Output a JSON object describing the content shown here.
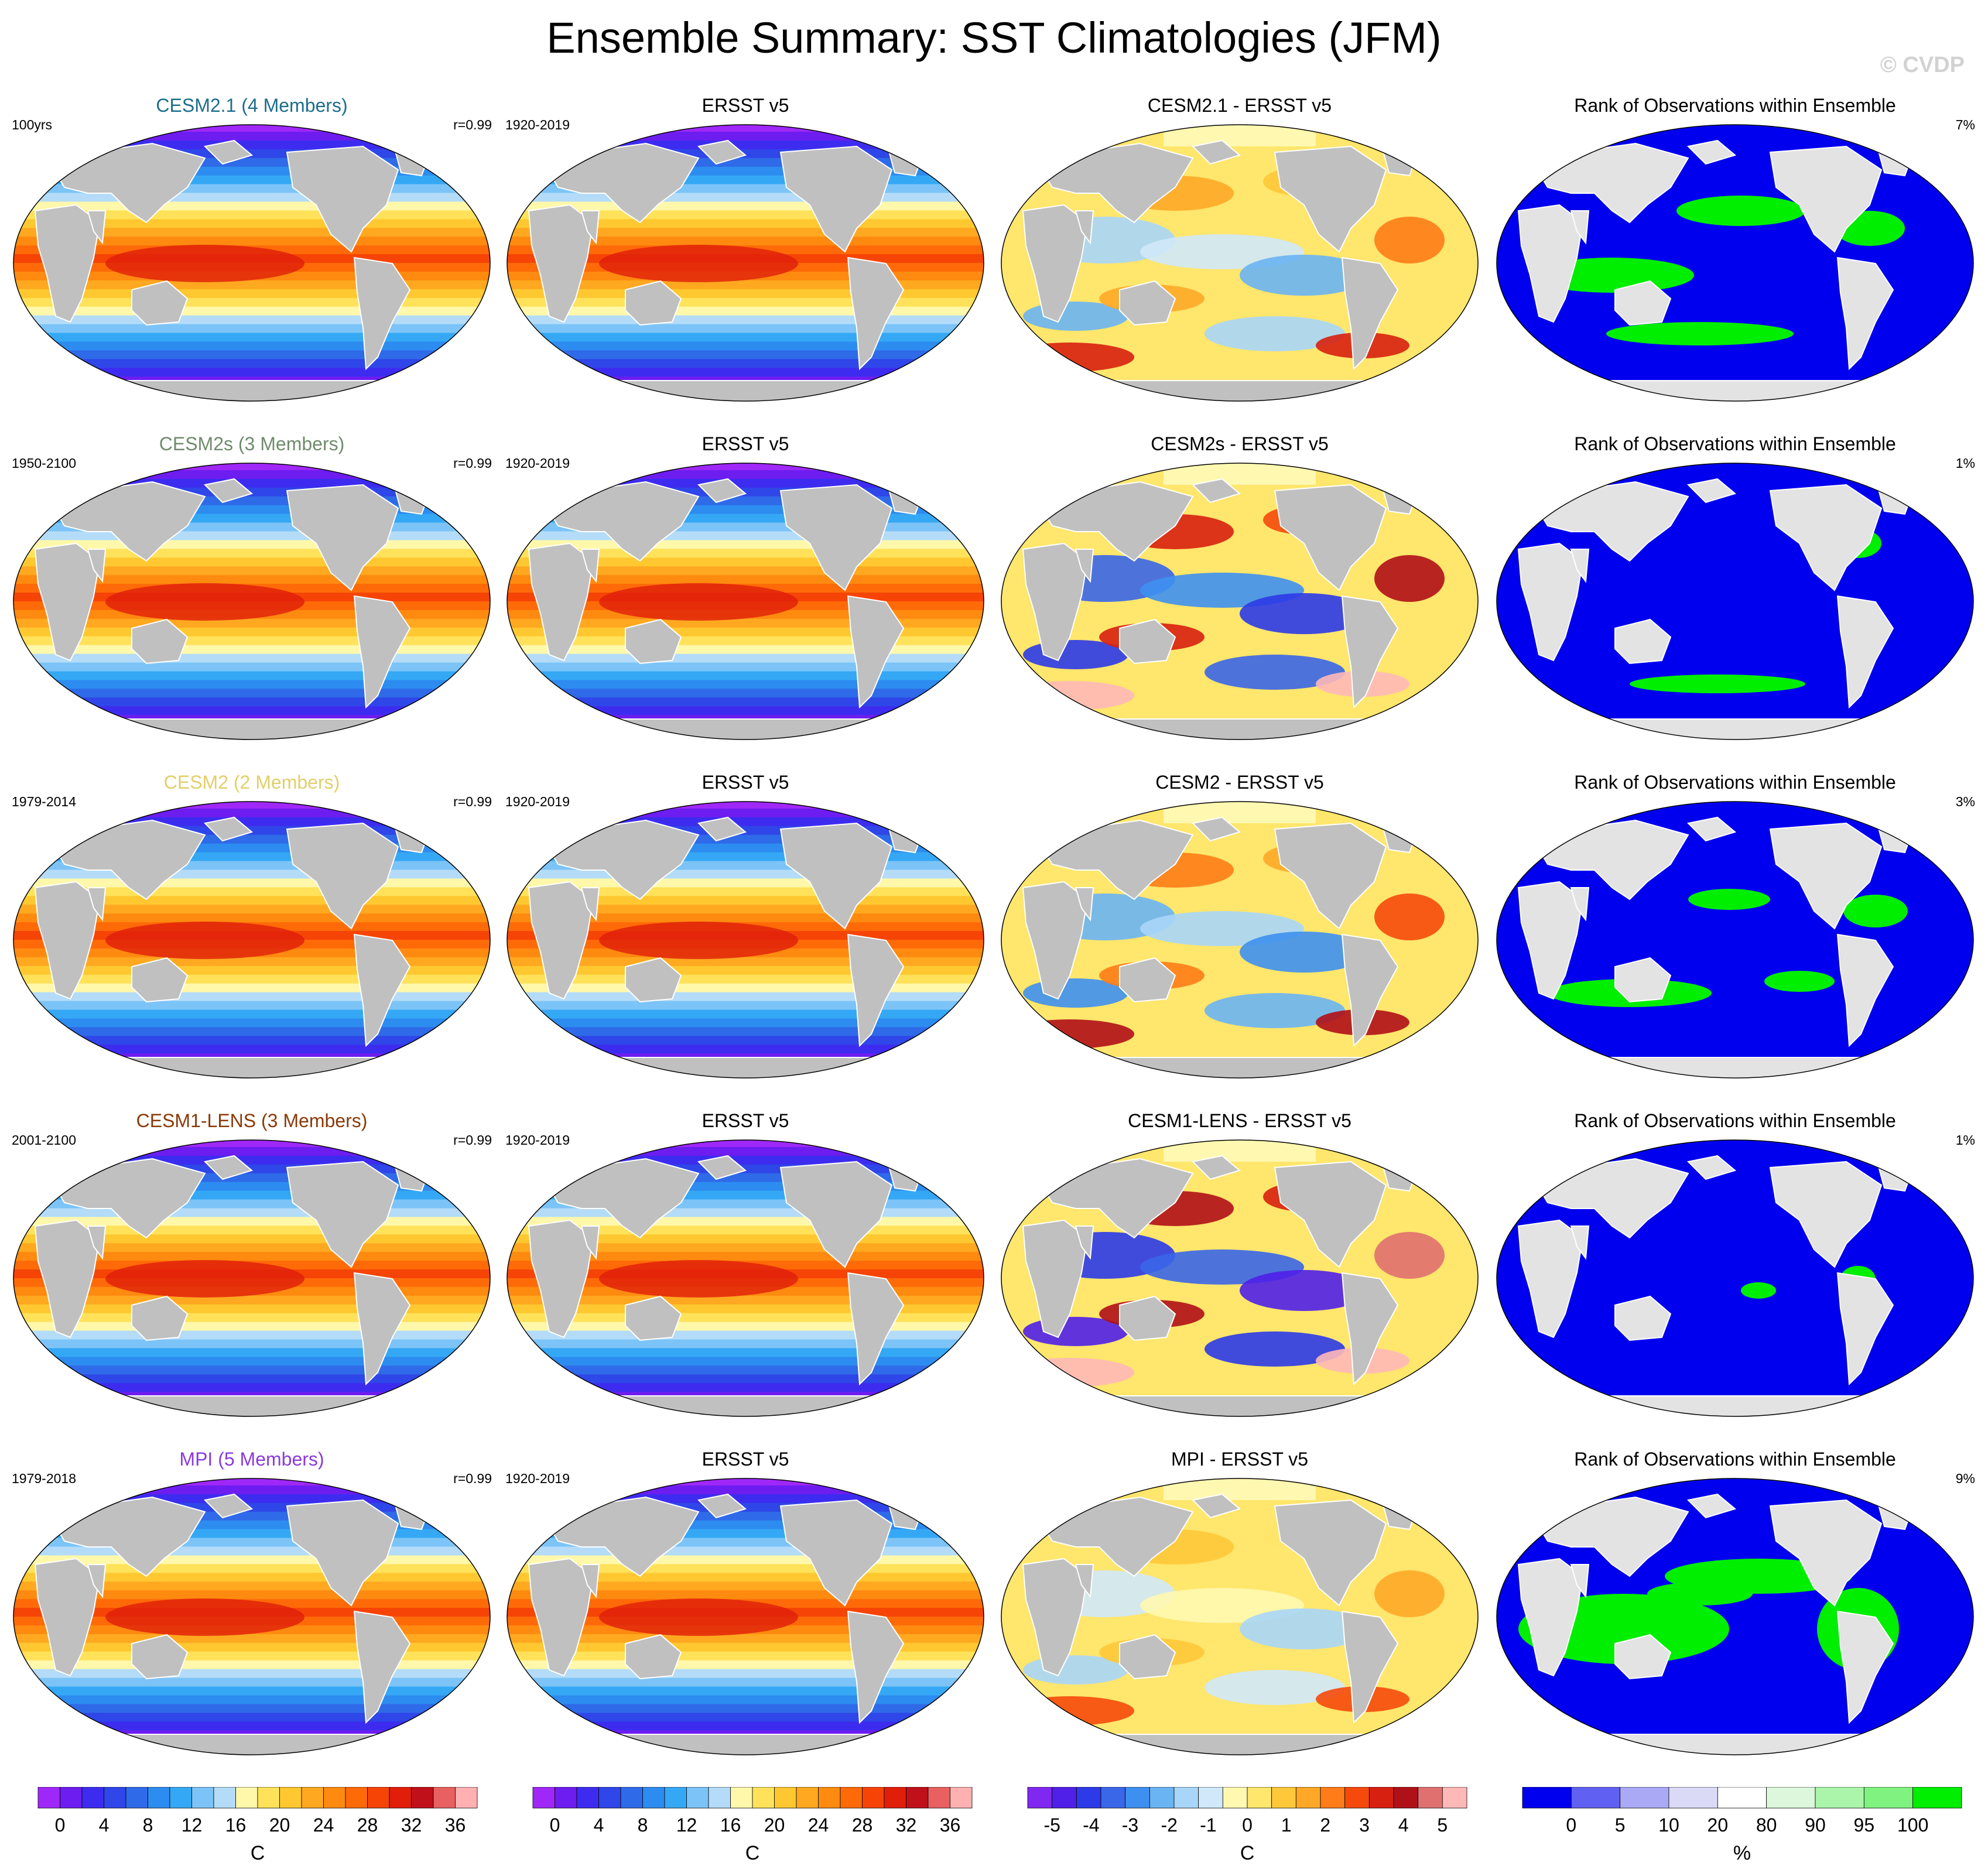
{
  "figure": {
    "title": "Ensemble Summary: SST Climatologies (JFM)",
    "watermark": "© CVDP"
  },
  "colors": {
    "land": "#c0c0c0",
    "land_light": "#e3e3e3",
    "sst_palette": [
      "#9f28f8",
      "#6d1df0",
      "#3d2cf0",
      "#2f46e8",
      "#2f6ae8",
      "#2d8cf0",
      "#35a8f5",
      "#7cc4f7",
      "#b4dcf8",
      "#fff8aa",
      "#ffe25a",
      "#ffc830",
      "#ffa820",
      "#ff8a10",
      "#ff6a08",
      "#f54406",
      "#e01e0a",
      "#c0101a",
      "#e86060",
      "#ffb0b0"
    ],
    "diff_palette": [
      "#8028f0",
      "#5020e8",
      "#2c3ae8",
      "#3a66e8",
      "#3e90f0",
      "#6ab4f4",
      "#a8d6f8",
      "#d0e8fa",
      "#fff8b0",
      "#ffe66c",
      "#ffc83a",
      "#ffa828",
      "#ff7c18",
      "#f54a0c",
      "#d82010",
      "#b01018",
      "#e07070",
      "#ffb8b8"
    ],
    "rank_palette": [
      "#0000ee",
      "#6060f2",
      "#a9a9f5",
      "#dadaf7",
      "#ffffff",
      "#dcf7dc",
      "#aaf5aa",
      "#7ff27f",
      "#00ee00"
    ]
  },
  "rows": [
    {
      "model": {
        "title": "CESM2.1 (4 Members)",
        "title_color": "#1d6e8a",
        "left": "100yrs",
        "right": "r=0.99"
      },
      "obs": {
        "title": "ERSST v5",
        "left": "1920-2019"
      },
      "diff": {
        "title": "CESM2.1 - ERSST v5"
      },
      "rank": {
        "title": "Rank of Observations within Ensemble",
        "right": "7%"
      }
    },
    {
      "model": {
        "title": "CESM2s (3 Members)",
        "title_color": "#6f8c6c",
        "left": "1950-2100",
        "right": "r=0.99"
      },
      "obs": {
        "title": "ERSST v5",
        "left": "1920-2019"
      },
      "diff": {
        "title": "CESM2s - ERSST v5"
      },
      "rank": {
        "title": "Rank of Observations within Ensemble",
        "right": "1%"
      }
    },
    {
      "model": {
        "title": "CESM2 (2 Members)",
        "title_color": "#e2cf6a",
        "left": "1979-2014",
        "right": "r=0.99"
      },
      "obs": {
        "title": "ERSST v5",
        "left": "1920-2019"
      },
      "diff": {
        "title": "CESM2 - ERSST v5"
      },
      "rank": {
        "title": "Rank of Observations within Ensemble",
        "right": "3%"
      }
    },
    {
      "model": {
        "title": "CESM1-LENS (3 Members)",
        "title_color": "#8a3a0a",
        "left": "2001-2100",
        "right": "r=0.99"
      },
      "obs": {
        "title": "ERSST v5",
        "left": "1920-2019"
      },
      "diff": {
        "title": "CESM1-LENS - ERSST v5"
      },
      "rank": {
        "title": "Rank of Observations within Ensemble",
        "right": "1%"
      }
    },
    {
      "model": {
        "title": "MPI (5 Members)",
        "title_color": "#8a3ae0",
        "left": "1979-2018",
        "right": "r=0.99"
      },
      "obs": {
        "title": "ERSST v5",
        "left": "1920-2019"
      },
      "diff": {
        "title": "MPI - ERSST v5"
      },
      "rank": {
        "title": "Rank of Observations within Ensemble",
        "right": "9%"
      }
    }
  ],
  "colorbars": [
    {
      "unit": "C",
      "labels": [
        "0",
        "4",
        "8",
        "12",
        "16",
        "20",
        "24",
        "28",
        "32",
        "36"
      ]
    },
    {
      "unit": "C",
      "labels": [
        "0",
        "4",
        "8",
        "12",
        "16",
        "20",
        "24",
        "28",
        "32",
        "36"
      ]
    },
    {
      "unit": "C",
      "labels": [
        "-5",
        "-4",
        "-3",
        "-2",
        "-1",
        "0",
        "1",
        "2",
        "3",
        "4",
        "5"
      ]
    },
    {
      "unit": "%",
      "labels": [
        "0",
        "5",
        "10",
        "20",
        "80",
        "90",
        "95",
        "100"
      ]
    }
  ],
  "chart_data": [
    {
      "type": "heatmap",
      "panel": "model",
      "title": "CESM2.1 (4 Members)",
      "colorbar_unit": "C",
      "colorbar_range": [
        -2,
        38
      ]
    },
    {
      "type": "heatmap",
      "panel": "obs",
      "title": "ERSST v5",
      "colorbar_unit": "C",
      "colorbar_range": [
        -2,
        38
      ]
    },
    {
      "type": "heatmap",
      "panel": "difference",
      "title": "CESM2.1 - ERSST v5",
      "colorbar_unit": "C",
      "colorbar_range": [
        -5,
        5
      ]
    },
    {
      "type": "heatmap",
      "panel": "rank",
      "title": "Rank of Observations within Ensemble",
      "colorbar_unit": "%",
      "colorbar_range": [
        0,
        100
      ]
    }
  ]
}
